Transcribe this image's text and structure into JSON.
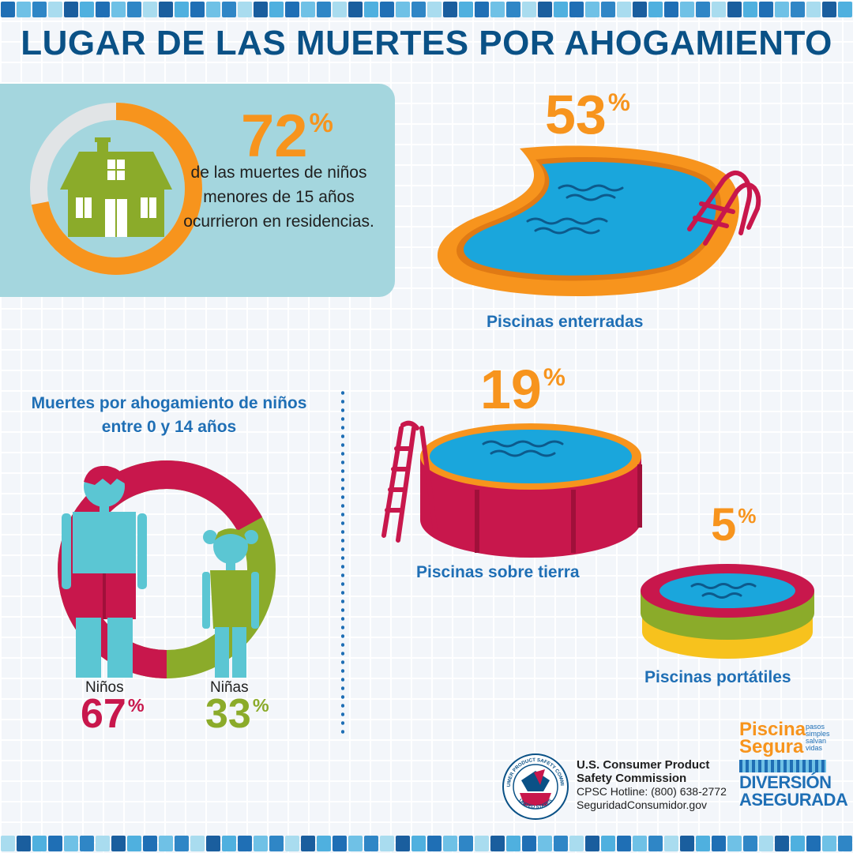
{
  "title": "LUGAR DE LAS MUERTES POR AHOGAMIENTO",
  "residences": {
    "value": "72",
    "unit": "%",
    "fraction": 0.72,
    "description": "de las muertes de niños menores de 15 años ocurrieron en residencias.",
    "icon": "house-icon"
  },
  "pools": {
    "inground": {
      "value": "53",
      "unit": "%",
      "label": "Piscinas enterradas",
      "icon": "inground-pool-icon"
    },
    "above_ground": {
      "value": "19",
      "unit": "%",
      "label": "Piscinas sobre tierra",
      "icon": "above-ground-pool-icon"
    },
    "portable": {
      "value": "5",
      "unit": "%",
      "label": "Piscinas portátiles",
      "icon": "portable-pool-icon"
    }
  },
  "gender": {
    "title": "Muertes por ahogamiento de niños entre 0 y 14 años",
    "boys": {
      "label": "Niños",
      "value": "67",
      "unit": "%",
      "fraction": 0.67,
      "color": "#c8174c"
    },
    "girls": {
      "label": "Niñas",
      "value": "33",
      "unit": "%",
      "fraction": 0.33,
      "color": "#8bab2a"
    }
  },
  "cpsc": {
    "line1": "U.S. Consumer Product",
    "line2": "Safety Commission",
    "hotline": "CPSC  Hotline: (800) 638-2772",
    "website": "SeguridadConsumidor.gov",
    "seal_top": "CONSUMER PRODUCT SAFETY COMMISSION",
    "seal_bottom": "UNITED STATES"
  },
  "logo": {
    "word1": "Piscina",
    "word2": "Segura",
    "tagline": "pasos simples salvan vidas",
    "line1": "DIVERSIÓN",
    "line2": "ASEGURADA"
  },
  "colors": {
    "accent_orange": "#f7941d",
    "title_blue": "#0a5186",
    "label_blue": "#1f6fb5",
    "house_green": "#8bab2a",
    "panel_teal": "#a4d6de",
    "pool_water": "#1aa6dc",
    "red": "#c8174c"
  }
}
